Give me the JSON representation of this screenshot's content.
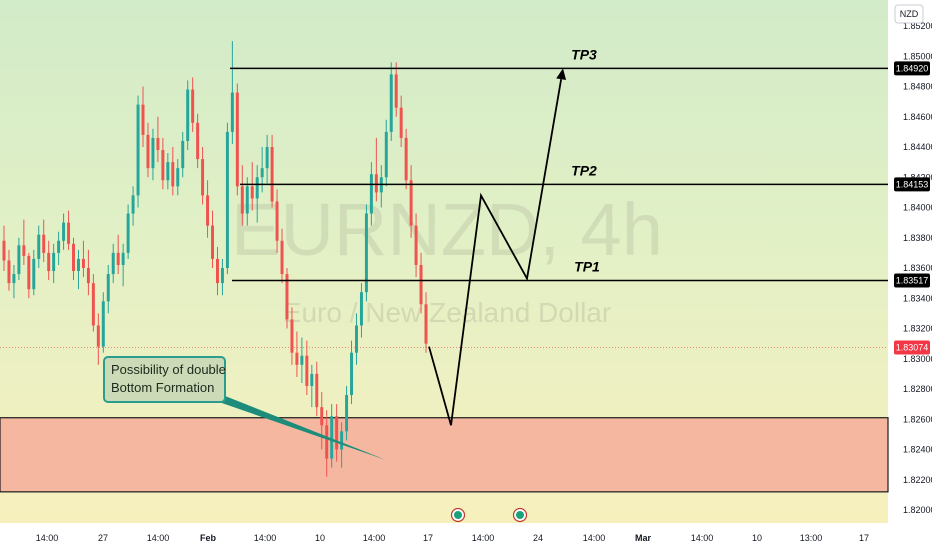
{
  "chart_data": {
    "type": "candlestick",
    "symbol": "EURNZD, 4h",
    "description": "Euro / New Zealand Dollar",
    "currency_label": "NZD",
    "ylim": [
      1.82,
      1.8538
    ],
    "y_ticks": [
      "1.85200",
      "1.85000",
      "1.84800",
      "1.84600",
      "1.84400",
      "1.84200",
      "1.84000",
      "1.83800",
      "1.83600",
      "1.83400",
      "1.83200",
      "1.83000",
      "1.82800",
      "1.82600",
      "1.82400",
      "1.82200",
      "1.82000"
    ],
    "x_ticks": [
      "14:00",
      "27",
      "14:00",
      "Feb",
      "14:00",
      "10",
      "14:00",
      "17",
      "14:00",
      "24",
      "14:00",
      "Mar",
      "14:00",
      "10",
      "13:00",
      "17"
    ],
    "levels": [
      {
        "name": "TP3",
        "value": 1.8492,
        "tag": "1.84920"
      },
      {
        "name": "TP2",
        "value": 1.84153,
        "tag": "1.84153"
      },
      {
        "name": "TP1",
        "value": 1.83517,
        "tag": "1.83517"
      }
    ],
    "current_price": {
      "value": 1.83074,
      "tag": "1.83074"
    },
    "demand_zone": {
      "top": 1.8261,
      "bottom": 1.8212
    },
    "projection_path": [
      1.8308,
      1.8256,
      1.8408,
      1.8353,
      1.8492
    ],
    "annotation": "Possibility of double\nBottom Formation",
    "candles_ohlc": [
      [
        1.8378,
        1.8388,
        1.8358,
        1.8365
      ],
      [
        1.8365,
        1.8372,
        1.8345,
        1.835
      ],
      [
        1.835,
        1.8362,
        1.834,
        1.8356
      ],
      [
        1.8356,
        1.838,
        1.8352,
        1.8375
      ],
      [
        1.8375,
        1.8392,
        1.8362,
        1.8368
      ],
      [
        1.8368,
        1.837,
        1.834,
        1.8346
      ],
      [
        1.8346,
        1.8372,
        1.8342,
        1.8366
      ],
      [
        1.8366,
        1.8388,
        1.836,
        1.8382
      ],
      [
        1.8382,
        1.8392,
        1.8364,
        1.837
      ],
      [
        1.837,
        1.8378,
        1.8352,
        1.8358
      ],
      [
        1.8358,
        1.8376,
        1.835,
        1.837
      ],
      [
        1.837,
        1.8384,
        1.8362,
        1.8378
      ],
      [
        1.8378,
        1.8396,
        1.8372,
        1.839
      ],
      [
        1.839,
        1.8398,
        1.8372,
        1.8376
      ],
      [
        1.8376,
        1.838,
        1.8352,
        1.8358
      ],
      [
        1.8358,
        1.8372,
        1.8346,
        1.8366
      ],
      [
        1.8366,
        1.8378,
        1.8354,
        1.836
      ],
      [
        1.836,
        1.8372,
        1.8342,
        1.835
      ],
      [
        1.835,
        1.8356,
        1.8318,
        1.8322
      ],
      [
        1.8322,
        1.833,
        1.8296,
        1.8308
      ],
      [
        1.8308,
        1.8344,
        1.8304,
        1.8338
      ],
      [
        1.8338,
        1.8362,
        1.833,
        1.8356
      ],
      [
        1.8356,
        1.8376,
        1.835,
        1.837
      ],
      [
        1.837,
        1.8382,
        1.8356,
        1.8362
      ],
      [
        1.8362,
        1.8376,
        1.8348,
        1.837
      ],
      [
        1.837,
        1.8402,
        1.8366,
        1.8396
      ],
      [
        1.8396,
        1.8414,
        1.8388,
        1.8408
      ],
      [
        1.8408,
        1.8474,
        1.84,
        1.8468
      ],
      [
        1.8468,
        1.848,
        1.844,
        1.8448
      ],
      [
        1.8448,
        1.8456,
        1.842,
        1.8426
      ],
      [
        1.8426,
        1.8452,
        1.8418,
        1.8446
      ],
      [
        1.8446,
        1.846,
        1.843,
        1.8438
      ],
      [
        1.8438,
        1.8446,
        1.8412,
        1.8418
      ],
      [
        1.8418,
        1.8436,
        1.8412,
        1.843
      ],
      [
        1.843,
        1.844,
        1.8408,
        1.8414
      ],
      [
        1.8414,
        1.8432,
        1.8408,
        1.8426
      ],
      [
        1.8426,
        1.845,
        1.842,
        1.8444
      ],
      [
        1.8444,
        1.8484,
        1.8438,
        1.8478
      ],
      [
        1.8478,
        1.8486,
        1.845,
        1.8456
      ],
      [
        1.8456,
        1.8462,
        1.8426,
        1.8432
      ],
      [
        1.8432,
        1.844,
        1.8402,
        1.8408
      ],
      [
        1.8408,
        1.8418,
        1.838,
        1.8388
      ],
      [
        1.8388,
        1.8398,
        1.836,
        1.8366
      ],
      [
        1.8366,
        1.8374,
        1.8342,
        1.835
      ],
      [
        1.835,
        1.8366,
        1.8342,
        1.836
      ],
      [
        1.836,
        1.8456,
        1.8356,
        1.845
      ],
      [
        1.845,
        1.851,
        1.8442,
        1.8476
      ],
      [
        1.8476,
        1.8482,
        1.8408,
        1.8414
      ],
      [
        1.8414,
        1.8428,
        1.8388,
        1.8396
      ],
      [
        1.8396,
        1.842,
        1.8388,
        1.8414
      ],
      [
        1.8414,
        1.843,
        1.8398,
        1.8406
      ],
      [
        1.8406,
        1.8428,
        1.839,
        1.842
      ],
      [
        1.842,
        1.844,
        1.841,
        1.8426
      ],
      [
        1.8426,
        1.8448,
        1.8416,
        1.844
      ],
      [
        1.844,
        1.8448,
        1.84,
        1.8404
      ],
      [
        1.8404,
        1.8412,
        1.837,
        1.8378
      ],
      [
        1.8378,
        1.8386,
        1.835,
        1.8356
      ],
      [
        1.8356,
        1.836,
        1.832,
        1.8326
      ],
      [
        1.8326,
        1.8334,
        1.8296,
        1.8304
      ],
      [
        1.8304,
        1.8318,
        1.8288,
        1.8296
      ],
      [
        1.8296,
        1.8314,
        1.8284,
        1.8302
      ],
      [
        1.8302,
        1.8312,
        1.8276,
        1.8282
      ],
      [
        1.8282,
        1.8296,
        1.8268,
        1.829
      ],
      [
        1.829,
        1.8298,
        1.8262,
        1.8268
      ],
      [
        1.8268,
        1.8278,
        1.824,
        1.8256
      ],
      [
        1.8256,
        1.8266,
        1.8222,
        1.8234
      ],
      [
        1.8234,
        1.827,
        1.8228,
        1.8262
      ],
      [
        1.8262,
        1.827,
        1.8232,
        1.824
      ],
      [
        1.824,
        1.8258,
        1.8228,
        1.8252
      ],
      [
        1.8252,
        1.8282,
        1.8246,
        1.8276
      ],
      [
        1.8276,
        1.8312,
        1.827,
        1.8304
      ],
      [
        1.8304,
        1.833,
        1.8296,
        1.8322
      ],
      [
        1.8322,
        1.835,
        1.8314,
        1.8344
      ],
      [
        1.8344,
        1.8402,
        1.8338,
        1.8396
      ],
      [
        1.8396,
        1.843,
        1.8388,
        1.8422
      ],
      [
        1.8422,
        1.8446,
        1.8404,
        1.841
      ],
      [
        1.841,
        1.8428,
        1.84,
        1.842
      ],
      [
        1.842,
        1.8458,
        1.8414,
        1.845
      ],
      [
        1.845,
        1.8496,
        1.8444,
        1.8488
      ],
      [
        1.8488,
        1.8496,
        1.846,
        1.8466
      ],
      [
        1.8466,
        1.8474,
        1.844,
        1.8446
      ],
      [
        1.8446,
        1.8452,
        1.8412,
        1.8418
      ],
      [
        1.8418,
        1.8428,
        1.838,
        1.8388
      ],
      [
        1.8388,
        1.8396,
        1.8354,
        1.8362
      ],
      [
        1.8362,
        1.837,
        1.833,
        1.8336
      ],
      [
        1.8336,
        1.8344,
        1.8304,
        1.831
      ]
    ]
  }
}
